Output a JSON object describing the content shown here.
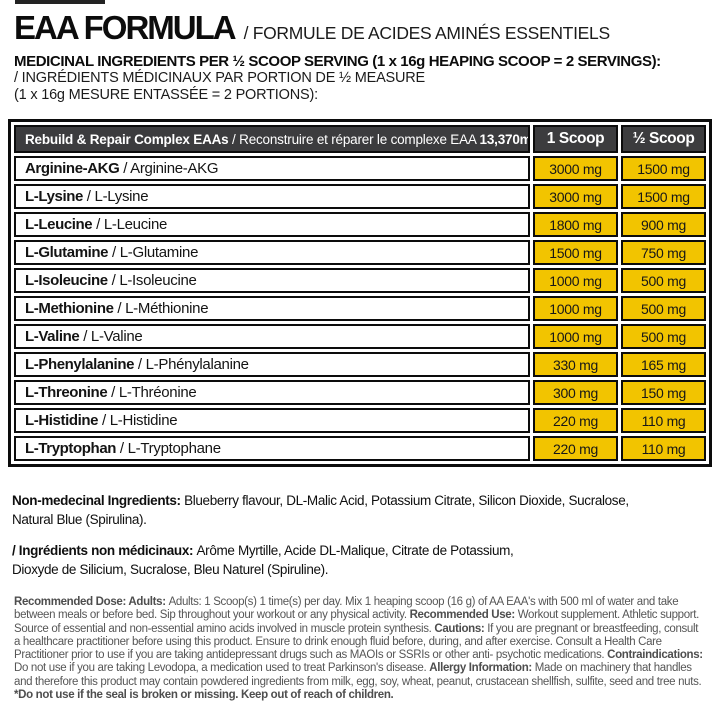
{
  "colors": {
    "accent_yellow": "#F2C400",
    "header_gray": "#3C3C3E",
    "border_black": "#0C0C0C",
    "fineprint_gray": "#565656"
  },
  "page": {
    "title_en": "EAA FORMULA",
    "title_fr": "/ FORMULE DE ACIDES AMINÉS ESSENTIELS",
    "subtitle_bold": "MEDICINAL INGREDIENTS PER ½ SCOOP SERVING (1 x 16g HEAPING SCOOP = 2 SERVINGS):",
    "subtitle_fr_line1": "/ INGRÉDIENTS MÉDICINAUX PAR PORTION DE ½ MEASURE",
    "subtitle_fr_line2": "(1 x 16g MESURE ENTASSÉE = 2 PORTIONS):"
  },
  "table": {
    "header": {
      "complex_segments": [
        {
          "t": "Rebuild & Repair Complex EAAs",
          "b": true
        },
        {
          "t": " / Reconstruire et réparer le complexe EAA "
        },
        {
          "t": "13,370mg:",
          "b": true
        }
      ],
      "col1": "1 Scoop",
      "col2": "½ Scoop"
    },
    "rows": [
      {
        "en": "Arginine-AKG",
        "fr": "Arginine-AKG",
        "scoop1": "3000 mg",
        "half": "1500 mg"
      },
      {
        "en": "L-Lysine",
        "fr": "L-Lysine",
        "scoop1": "3000 mg",
        "half": "1500 mg"
      },
      {
        "en": "L-Leucine",
        "fr": "L-Leucine",
        "scoop1": "1800 mg",
        "half": "900 mg"
      },
      {
        "en": "L-Glutamine",
        "fr": "L-Glutamine",
        "scoop1": "1500 mg",
        "half": "750 mg"
      },
      {
        "en": "L-Isoleucine",
        "fr": "L-Isoleucine",
        "scoop1": "1000 mg",
        "half": "500 mg"
      },
      {
        "en": "L-Methionine",
        "fr": "L-Méthionine",
        "scoop1": "1000 mg",
        "half": "500 mg"
      },
      {
        "en": "L-Valine",
        "fr": "L-Valine",
        "scoop1": "1000 mg",
        "half": "500 mg"
      },
      {
        "en": "L-Phenylalanine",
        "fr": "L-Phénylalanine",
        "scoop1": "330 mg",
        "half": "165 mg"
      },
      {
        "en": "L-Threonine",
        "fr": "L-Thréonine",
        "scoop1": "300 mg",
        "half": "150 mg"
      },
      {
        "en": "L-Histidine",
        "fr": "L-Histidine",
        "scoop1": "220 mg",
        "half": "110 mg"
      },
      {
        "en": "L-Tryptophan",
        "fr": "L-Tryptophane",
        "scoop1": "220 mg",
        "half": "110 mg"
      }
    ]
  },
  "non_medicinal": {
    "en_segments": [
      {
        "t": "Non-medecinal Ingredients: ",
        "b": true
      },
      {
        "t": "Blueberry flavour, DL-Malic Acid, Potassium Citrate, Silicon Dioxide, Sucralose,"
      },
      {
        "br": true
      },
      {
        "t": "Natural Blue (Spirulina)."
      }
    ],
    "fr_segments": [
      {
        "t": "/ Ingrédients non médicinaux: ",
        "b": true
      },
      {
        "t": "Arôme Myrtille, Acide DL-Malique, Citrate de Potassium,"
      },
      {
        "br": true
      },
      {
        "t": "Dioxyde de Silicium, Sucralose, Bleu Naturel (Spiruline)."
      }
    ]
  },
  "fine_print": {
    "segments": [
      {
        "t": "Recommended Dose: Adults: ",
        "b": true
      },
      {
        "t": "Adults: 1 Scoop(s) 1 time(s) per day. Mix 1 heaping scoop (16 g) of AA EAA's with 500 ml of water and take between meals or before bed. Sip throughout your workout or any physical activity. "
      },
      {
        "t": "Recommended Use: ",
        "b": true
      },
      {
        "t": "Workout supplement. Athletic support. Source of essential and non-essential amino acids involved in muscle protein synthesis. "
      },
      {
        "t": "Cautions: ",
        "b": true
      },
      {
        "t": "If you are pregnant or breastfeeding, consult a healthcare practitioner before using this product. Ensure to drink enough fluid before, during, and after exercise. Consult a Health Care Practitioner prior to use if you are taking antidepressant drugs such as MAOIs or SSRIs or other anti- psychotic medications. "
      },
      {
        "t": "Contraindications: ",
        "b": true
      },
      {
        "t": "Do not use if you are taking Levodopa, a medication used to treat Parkinson's disease. "
      },
      {
        "t": "Allergy Information: ",
        "b": true
      },
      {
        "t": "Made on machinery that handles and therefore this product may contain powdered ingredients from milk, egg, soy, wheat, peanut, crustacean shellfish, sulfite, seed and tree nuts. "
      },
      {
        "t": "*Do not use if the seal is broken or missing. Keep out of reach of children.",
        "b": true
      }
    ]
  }
}
